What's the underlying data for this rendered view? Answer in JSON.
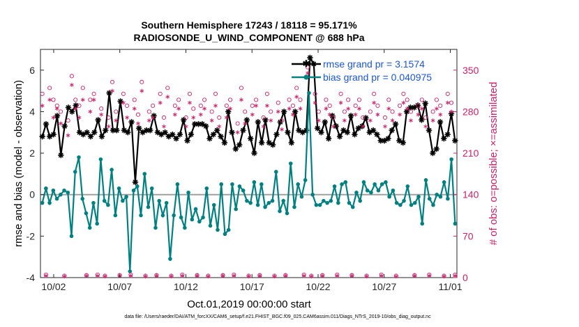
{
  "chart_data": {
    "type": "line",
    "title_line1": "Southern Hemisphere 17243 / 18118 = 95.171%",
    "title_line2": "RADIOSONDE_U_WIND_COMPONENT @ 688 hPa",
    "xlabel": "Oct.01,2019 00:00:00 start",
    "ylabel_left": "rmse and bias (model - observation)",
    "ylabel_right": "# of obs: o=possible; ×=assimilated",
    "xlim": [
      1.0,
      32.5
    ],
    "ylim_left": [
      -4,
      7
    ],
    "ylim_right": [
      0,
      385
    ],
    "x_ticks": [
      {
        "value": 2,
        "label": "10/02"
      },
      {
        "value": 7,
        "label": "10/07"
      },
      {
        "value": 12,
        "label": "10/12"
      },
      {
        "value": 17,
        "label": "10/17"
      },
      {
        "value": 22,
        "label": "10/22"
      },
      {
        "value": 27,
        "label": "10/27"
      },
      {
        "value": 32,
        "label": "11/01"
      }
    ],
    "y_ticks_left": [
      -4,
      -2,
      0,
      2,
      4,
      6
    ],
    "y_ticks_right": [
      0,
      70,
      140,
      210,
      280,
      350
    ],
    "footer": "data file: /Users/raeder/DAI/ATM_forcXX/CAM6_setup/f.e21.FHIST_BGC.f09_025.CAM6assim.011/Diags_NTrS_2019-10/obs_diag_output.nc",
    "series": [
      {
        "name": "rmse",
        "legend_label": "rmse grand pr = 3.1574",
        "color": "#000000",
        "axis": "left",
        "values": [
          2.8,
          3.4,
          2.8,
          2.9,
          3.8,
          1.9,
          3.3,
          4.2,
          4.0,
          4.3,
          3.0,
          2.9,
          3.0,
          2.8,
          3.0,
          3.6,
          2.8,
          3.1,
          4.9,
          3.1,
          3.1,
          4.5,
          3.1,
          3.0,
          3.5,
          0.6,
          3.2,
          3.0,
          3.1,
          3.1,
          3.8,
          3.0,
          2.9,
          3.0,
          2.8,
          2.9,
          2.7,
          2.9,
          3.6,
          2.6,
          2.9,
          3.4,
          3.4,
          3.4,
          3.3,
          2.7,
          2.9,
          3.1,
          2.8,
          2.5,
          4.0,
          3.0,
          2.2,
          2.4,
          3.1,
          3.6,
          2.7,
          2.0,
          3.5,
          2.5,
          3.6,
          2.5,
          2.4,
          2.9,
          3.5,
          4.0,
          3.0,
          2.5,
          4.0,
          3.1,
          3.0,
          3.1,
          6.6,
          6.3,
          3.2,
          3.0,
          3.5,
          2.7,
          3.8,
          3.3,
          2.8,
          3.1,
          3.0,
          3.8,
          2.9,
          3.2,
          3.3,
          3.7,
          3.0,
          3.1,
          2.9,
          2.6,
          2.6,
          2.7,
          3.1,
          3.4,
          2.6,
          2.5,
          4.0,
          4.2,
          4.2,
          4.3,
          3.6,
          4.4,
          3.1,
          2.0,
          2.2,
          3.5,
          2.7,
          2.9,
          3.9,
          2.6
        ]
      },
      {
        "name": "bias",
        "legend_label": "bias grand pr = 0.040975",
        "color": "#008080",
        "axis": "left",
        "values": [
          -0.4,
          0.3,
          -0.4,
          0.2,
          -0.2,
          0.0,
          0.2,
          0.1,
          -2.0,
          1.1,
          1.8,
          -0.2,
          -0.9,
          -1.6,
          -0.4,
          -1.4,
          1.7,
          -0.3,
          -0.5,
          1.2,
          -1.0,
          0.3,
          -0.3,
          -0.1,
          -3.7,
          0.2,
          0.4,
          -1.0,
          1.0,
          -0.6,
          0.3,
          -1.6,
          -0.3,
          -1.0,
          -0.4,
          -3.1,
          -1.0,
          0.5,
          -1.1,
          -1.6,
          0.1,
          -1.2,
          -0.7,
          -1.3,
          -1.1,
          0.3,
          -1.5,
          -0.5,
          -1.7,
          0.5,
          -1.9,
          -1.7,
          0.5,
          -0.7,
          0.4,
          0.2,
          -0.3,
          -0.4,
          0.6,
          -0.5,
          0.5,
          -0.6,
          -0.4,
          -0.3,
          1.1,
          -0.8,
          -0.3,
          -0.9,
          1.5,
          -0.6,
          0.5,
          -0.1,
          0.7,
          4.9,
          0.0,
          -0.5,
          -0.5,
          -0.3,
          -0.4,
          -0.3,
          0.4,
          -0.4,
          0.5,
          0.6,
          -0.4,
          -0.6,
          0.1,
          -0.3,
          0.6,
          0.2,
          0.1,
          0.5,
          0.2,
          0.5,
          0.6,
          -0.1,
          0.2,
          -0.4,
          -0.5,
          -0.3,
          0.4,
          -0.5,
          -0.4,
          -0.1,
          -1.4,
          0.7,
          -0.2,
          -0.5,
          0.0,
          -0.1,
          0.6,
          -0.2,
          1.7,
          -1.4
        ]
      },
      {
        "name": "possible",
        "legend_label": "o=possible",
        "color": "#cc1f6b",
        "axis": "right",
        "marker": "circle",
        "values": [
          310,
          5,
          320,
          300,
          290,
          280,
          3,
          265,
          340,
          300,
          290,
          320,
          4,
          300,
          310,
          5,
          285,
          3,
          270,
          330,
          280,
          4,
          310,
          290,
          5,
          300,
          275,
          330,
          3,
          280,
          290,
          4,
          310,
          270,
          320,
          3,
          290,
          300,
          5,
          270,
          310,
          285,
          4,
          290,
          300,
          3,
          280,
          310,
          270,
          4,
          290,
          300,
          5,
          260,
          320,
          280,
          3,
          290,
          300,
          4,
          270,
          310,
          280,
          3,
          295,
          265,
          4,
          300,
          290,
          320,
          300,
          5,
          355,
          3,
          310,
          280,
          4,
          300,
          290,
          270,
          5,
          310,
          280,
          300,
          4,
          290,
          300,
          270,
          3,
          280,
          310,
          290,
          5,
          270,
          300,
          280,
          3,
          290,
          310,
          300,
          280,
          4,
          290,
          300,
          270,
          5,
          280,
          300,
          290,
          3,
          310,
          295,
          5
        ]
      },
      {
        "name": "assimilated",
        "legend_label": "×=assimilated",
        "color": "#cc1f6b",
        "axis": "right",
        "marker": "asterisk",
        "values": [
          290,
          3,
          300,
          270,
          285,
          260,
          2,
          240,
          325,
          285,
          270,
          300,
          3,
          280,
          300,
          3,
          275,
          2,
          255,
          315,
          265,
          3,
          295,
          270,
          3,
          285,
          260,
          315,
          2,
          265,
          270,
          3,
          295,
          255,
          305,
          2,
          275,
          285,
          3,
          255,
          295,
          270,
          3,
          275,
          285,
          2,
          265,
          290,
          255,
          3,
          270,
          285,
          3,
          245,
          300,
          260,
          2,
          275,
          290,
          3,
          255,
          290,
          265,
          2,
          280,
          250,
          3,
          285,
          275,
          305,
          285,
          3,
          345,
          2,
          295,
          265,
          3,
          285,
          275,
          255,
          3,
          295,
          265,
          285,
          3,
          275,
          285,
          255,
          2,
          265,
          295,
          275,
          3,
          255,
          285,
          265,
          2,
          275,
          295,
          285,
          265,
          3,
          275,
          285,
          255,
          3,
          265,
          285,
          275,
          2,
          295,
          280,
          3
        ]
      }
    ],
    "zero_line_color": "#a0a0a0",
    "right_axis_color": "#cc1f6b"
  }
}
